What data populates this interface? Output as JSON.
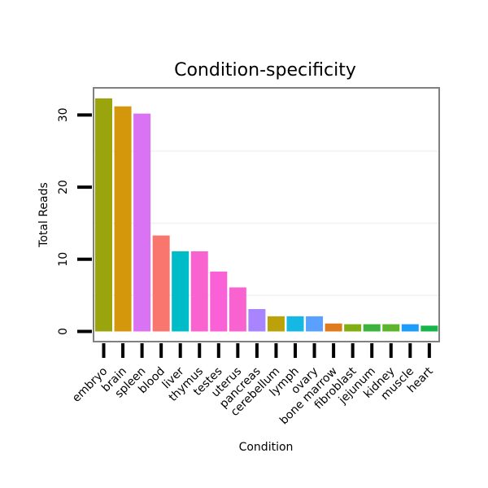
{
  "chart_data": {
    "type": "bar",
    "title": "Condition-specificity",
    "xlabel": "Condition",
    "ylabel": "Total Reads",
    "ylim": [
      0,
      34
    ],
    "yticks": [
      0,
      10,
      20,
      30
    ],
    "grid": true,
    "legend": "none",
    "categories": [
      "embryo",
      "brain",
      "spleen",
      "blood",
      "liver",
      "thymus",
      "testes",
      "uterus",
      "pancreas",
      "cerebellum",
      "lymph",
      "ovary",
      "bone marrow",
      "fibroblast",
      "jejunum",
      "kidney",
      "muscle",
      "heart"
    ],
    "values": [
      32.3,
      31.2,
      30.2,
      13.3,
      11.1,
      11.1,
      8.3,
      6.1,
      3.1,
      2.1,
      2.1,
      2.1,
      1.1,
      1.0,
      1.0,
      1.0,
      1.0,
      0.8
    ],
    "colors": [
      "#9AA50E",
      "#D4960A",
      "#DA72F4",
      "#F8766D",
      "#00BCC8",
      "#F863D0",
      "#FB61D7",
      "#F863D0",
      "#A885FE",
      "#BBA20A",
      "#14B8E3",
      "#5AA1FF",
      "#E07B1D",
      "#82AE13",
      "#3BB33E",
      "#5DB52C",
      "#1C9CFB",
      "#17B44A"
    ]
  }
}
